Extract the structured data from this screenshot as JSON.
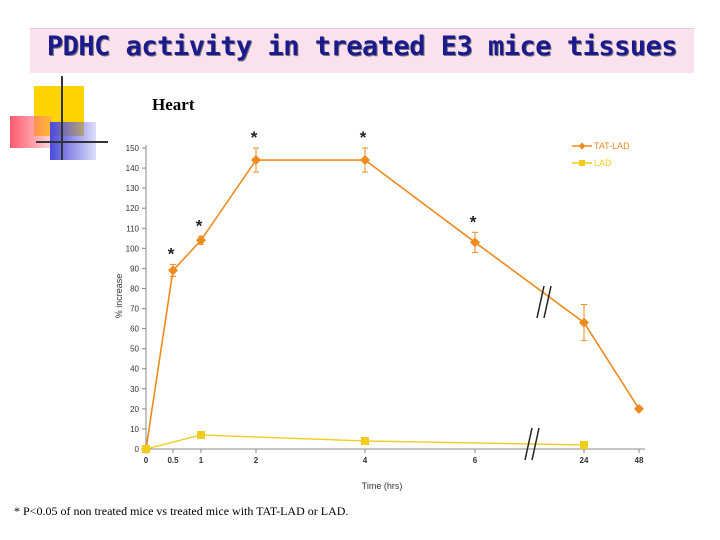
{
  "slide": {
    "title": "PDHC activity in treated E3 mice tissues",
    "footnote": "* P<0.05 of non treated mice vs treated mice with TAT-LAD or LAD."
  },
  "colors": {
    "tat_lad": "#f08a1e",
    "lad": "#f2cc1a",
    "title_bg": "#fbe0ee",
    "title_text": "#1a1a8c",
    "deco_yellow": "#ffd200",
    "deco_red": "#ff5a6e",
    "deco_blue": "#4a4adc"
  },
  "chart_data": {
    "type": "line",
    "title": "Heart",
    "xlabel": "Time (hrs)",
    "ylabel": "% increase",
    "categories": [
      "0",
      "0.5",
      "1",
      "2",
      "4",
      "6",
      "24",
      "48"
    ],
    "ylim": [
      0,
      150
    ],
    "yticks": [
      0,
      10,
      20,
      30,
      40,
      50,
      60,
      70,
      80,
      90,
      100,
      110,
      120,
      130,
      140,
      150
    ],
    "axis_break": "between 6 and 24",
    "legend_position": "top-right",
    "series": [
      {
        "name": "TAT-LAD",
        "color": "#f08a1e",
        "marker": "diamond",
        "values": [
          0,
          89,
          104,
          144,
          144,
          103,
          63,
          20
        ],
        "errors": [
          0,
          3,
          2,
          6,
          6,
          5,
          9,
          0
        ],
        "significant": [
          false,
          true,
          true,
          true,
          true,
          true,
          false,
          false
        ]
      },
      {
        "name": "LAD",
        "color": "#f2cc1a",
        "marker": "square",
        "values": [
          0,
          null,
          7,
          null,
          4,
          null,
          2,
          null
        ],
        "errors": [
          0,
          0,
          0,
          0,
          0,
          0,
          0,
          0
        ]
      }
    ],
    "significance_marker": "*"
  }
}
